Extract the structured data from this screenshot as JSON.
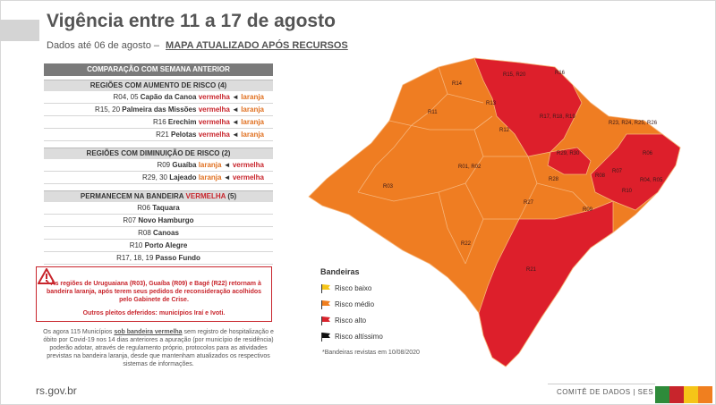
{
  "header": {
    "title": "Vigência entre 11 a 17 de agosto",
    "subtitle_prefix": "Dados até 06 de agosto –",
    "subtitle_link": "MAPA ATUALIZADO APÓS RECURSOS"
  },
  "table": {
    "header": "COMPARAÇÃO COM SEMANA ANTERIOR",
    "increase": {
      "title": "REGIÕES COM AUMENTO DE RISCO (4)",
      "rows": [
        {
          "code": "R04, 05",
          "name": "Capão da Canoa",
          "from": "vermelha",
          "to": "laranja"
        },
        {
          "code": "R15, 20",
          "name": "Palmeira das Missões",
          "from": "vermelha",
          "to": "laranja"
        },
        {
          "code": "R16",
          "name": "Erechim",
          "from": "vermelha",
          "to": "laranja"
        },
        {
          "code": "R21",
          "name": "Pelotas",
          "from": "vermelha",
          "to": "laranja"
        }
      ]
    },
    "decrease": {
      "title": "REGIÕES COM DIMINUIÇÃO DE RISCO (2)",
      "rows": [
        {
          "code": "R09",
          "name": "Guaíba",
          "from": "laranja",
          "to": "vermelha"
        },
        {
          "code": "R29, 30",
          "name": "Lajeado",
          "from": "laranja",
          "to": "vermelha"
        }
      ]
    },
    "remain": {
      "title_prefix": "PERMANECEM NA BANDEIRA",
      "title_flag": "VERMELHA",
      "title_count": "(5)",
      "rows": [
        {
          "code": "R06",
          "name": "Taquara"
        },
        {
          "code": "R07",
          "name": "Novo Hamburgo"
        },
        {
          "code": "R08",
          "name": "Canoas"
        },
        {
          "code": "R10",
          "name": "Porto Alegre"
        },
        {
          "code": "R17, 18, 19",
          "name": "Passo Fundo"
        }
      ]
    }
  },
  "notice": {
    "text": "* As regiões de Uruguaiana (R03), Guaíba (R09) e Bagé (R22) retornam à bandeira laranja, após terem seus pedidos de reconsideração acolhidos pelo Gabinete de Crise.",
    "extra": "Outros pleitos deferidos: municípios Iraí e Ivoti."
  },
  "paragraph": {
    "before": "Os agora 115 Municípios",
    "underlined": "sob bandeira vermelha",
    "after": "sem registro de hospitalização e óbito por Covid-19 nos 14 dias anteriores a apuração (por município de residência) poderão adotar, através de regulamento próprio, protocolos para as atividades previstas na bandeira laranja, desde que mantenham atualizados os respectivos sistemas de informações."
  },
  "legend": {
    "title": "Bandeiras",
    "items": [
      {
        "label": "Risco baixo",
        "color": "#f5c518"
      },
      {
        "label": "Risco médio",
        "color": "#f07f1f"
      },
      {
        "label": "Risco alto",
        "color": "#d9232c"
      },
      {
        "label": "Risco altíssimo",
        "color": "#111111"
      }
    ],
    "note": "*Bandeiras revistas em 10/08/2020"
  },
  "map": {
    "colors": {
      "orange": "#ef7d22",
      "red": "#dd1f2b",
      "border": "#f6b47a"
    },
    "labels": {
      "r14": "R14",
      "r15_20": "R15, R20",
      "r16": "R16",
      "r11": "R11",
      "r13": "R13",
      "r17_18_19": "R17, R18, R19",
      "r23_26": "R23, R24, R25, R26",
      "r12": "R12",
      "r29_30": "R29, R30",
      "r06": "R06",
      "r01_02": "R01, R02",
      "r07": "R07",
      "r08": "R08",
      "r04_05": "R04, R05",
      "r10": "R10",
      "r03": "R03",
      "r28": "R28",
      "r27": "R27",
      "r09": "R09",
      "r22": "R22",
      "r21": "R21"
    }
  },
  "footer": {
    "site": "rs.gov.br",
    "committee": "COMITÊ DE DADOS | SES",
    "bar_colors": [
      "#2e8b3a",
      "#c8252c",
      "#f5c518",
      "#f07f1f"
    ]
  }
}
